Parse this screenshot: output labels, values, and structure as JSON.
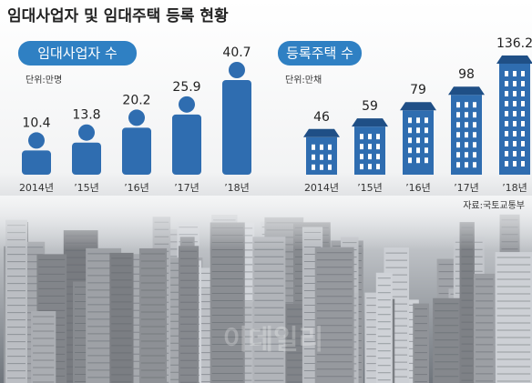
{
  "title": "임대사업자 및 임대주택 등록 현황",
  "chart_data": [
    {
      "type": "person",
      "title": "임대사업자 수",
      "unit": "단위:만명",
      "categories": [
        "2014년",
        "’15년",
        "’16년",
        "’17년",
        "’18년"
      ],
      "values": [
        10.4,
        13.8,
        20.2,
        25.9,
        40.7
      ],
      "color": "#2f6db0"
    },
    {
      "type": "building",
      "title": "등록주택 수",
      "unit": "단위:만채",
      "categories": [
        "2014년",
        "’15년",
        "’16년",
        "’17년",
        "’18년"
      ],
      "values": [
        46,
        59,
        79,
        98,
        136.2
      ],
      "color": "#2f6db0"
    }
  ],
  "source": "자료:국토교통부",
  "watermark": "이데일리"
}
